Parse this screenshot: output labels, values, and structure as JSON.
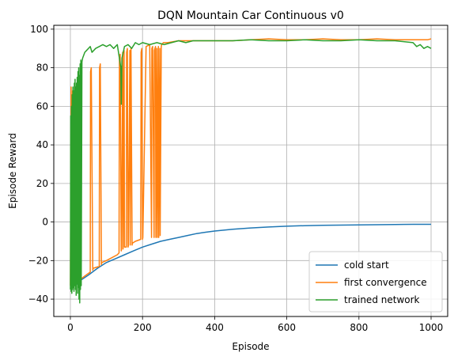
{
  "chart_data": {
    "type": "line",
    "title": "DQN Mountain Car Continuous v0",
    "xlabel": "Episode",
    "ylabel": "Episode Reward",
    "xlim": [
      -46,
      1046
    ],
    "ylim": [
      -49,
      102
    ],
    "xticks": [
      0,
      200,
      400,
      600,
      800,
      1000
    ],
    "yticks": [
      -40,
      -20,
      0,
      20,
      40,
      60,
      80,
      100
    ],
    "grid": true,
    "legend_position": "lower right",
    "series": [
      {
        "name": "cold start",
        "color": "#1f77b4",
        "x": [
          0,
          10,
          20,
          30,
          50,
          75,
          100,
          125,
          150,
          175,
          200,
          225,
          250,
          275,
          300,
          325,
          350,
          375,
          400,
          450,
          500,
          550,
          600,
          650,
          700,
          750,
          800,
          850,
          900,
          950,
          1000
        ],
        "values": [
          -34,
          -33,
          -32,
          -30,
          -27.5,
          -24,
          -21,
          -19,
          -17,
          -15,
          -13,
          -11.5,
          -10,
          -9,
          -8,
          -7,
          -6,
          -5.3,
          -4.7,
          -3.8,
          -3.1,
          -2.6,
          -2.2,
          -1.9,
          -1.7,
          -1.6,
          -1.5,
          -1.4,
          -1.3,
          -1.2,
          -1.2
        ]
      },
      {
        "name": "first convergence",
        "color": "#ff7f0e",
        "x": [
          0,
          2,
          4,
          6,
          8,
          10,
          20,
          40,
          55,
          56,
          58,
          62,
          63,
          80,
          81,
          83,
          86,
          87,
          100,
          130,
          135,
          136,
          138,
          141,
          142,
          145,
          146,
          149,
          150,
          155,
          156,
          158,
          160,
          161,
          165,
          166,
          168,
          171,
          172,
          180,
          195,
          196,
          198,
          200,
          201,
          210,
          220,
          225,
          226,
          228,
          232,
          233,
          236,
          237,
          240,
          241,
          244,
          245,
          248,
          249,
          252,
          253,
          258,
          270,
          300,
          330,
          360,
          400,
          450,
          500,
          550,
          600,
          650,
          700,
          750,
          800,
          850,
          900,
          950,
          990,
          1000
        ],
        "values": [
          -33,
          70,
          -32,
          68,
          -31,
          67,
          -31,
          -28,
          -26,
          78,
          80,
          -25,
          -24,
          -23,
          80,
          82,
          -22,
          -21,
          -20,
          -17,
          -16,
          85,
          87,
          -15,
          -14,
          88,
          -14,
          89,
          -13,
          -13,
          88,
          90,
          -13,
          -12,
          89,
          -12,
          90,
          -12,
          -11,
          -10,
          -9,
          88,
          90,
          -9,
          -8,
          91,
          92,
          -8,
          90,
          91,
          -8,
          89,
          91,
          -8,
          90,
          -8,
          91,
          -8,
          90,
          -7,
          91,
          92,
          93,
          93,
          94,
          94,
          94,
          94,
          94,
          94.5,
          95,
          94.5,
          94.5,
          95,
          94.5,
          94.5,
          95,
          94.5,
          94.5,
          94.5,
          95
        ]
      },
      {
        "name": "trained network",
        "color": "#2ca02c",
        "x": [
          0,
          1,
          2,
          3,
          4,
          5,
          6,
          7,
          8,
          9,
          10,
          11,
          12,
          13,
          14,
          15,
          16,
          17,
          18,
          19,
          20,
          21,
          22,
          23,
          24,
          25,
          26,
          27,
          28,
          29,
          30,
          32,
          34,
          36,
          40,
          45,
          50,
          55,
          60,
          70,
          80,
          90,
          100,
          110,
          120,
          130,
          140,
          141,
          143,
          150,
          160,
          170,
          180,
          190,
          200,
          220,
          240,
          260,
          280,
          300,
          320,
          340,
          360,
          380,
          400,
          450,
          500,
          550,
          600,
          650,
          700,
          750,
          800,
          850,
          900,
          950,
          960,
          970,
          980,
          990,
          1000
        ],
        "values": [
          -35,
          55,
          -36,
          60,
          -37,
          66,
          -35,
          70,
          -34,
          68,
          -36,
          72,
          -33,
          74,
          -35,
          70,
          -38,
          72,
          -32,
          75,
          -37,
          78,
          -34,
          80,
          -40,
          76,
          -42,
          82,
          -35,
          84,
          -33,
          83,
          85,
          86,
          88,
          89,
          90,
          91,
          88,
          90,
          91,
          92,
          91,
          92,
          90,
          92,
          80,
          61,
          85,
          91,
          92,
          90,
          93,
          92,
          93,
          92,
          93,
          92,
          93,
          94,
          93,
          94,
          94,
          94,
          94,
          94,
          94.5,
          94,
          94,
          94.5,
          94,
          94,
          94.5,
          94,
          94,
          93,
          91,
          92,
          90,
          91,
          90
        ]
      }
    ]
  }
}
